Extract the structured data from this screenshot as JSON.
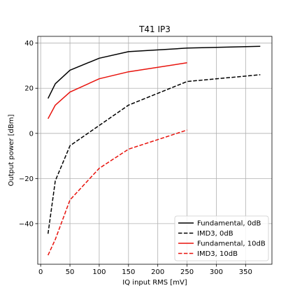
{
  "chart_data": {
    "type": "line",
    "title": "T41 IP3",
    "xlabel": "IQ input RMS [mV]",
    "ylabel": "Output power [dBm]",
    "xlim": [
      -5,
      395
    ],
    "ylim": [
      -58,
      43
    ],
    "xticks": [
      0,
      50,
      100,
      150,
      200,
      250,
      300,
      350
    ],
    "yticks": [
      -40,
      -20,
      0,
      20,
      40
    ],
    "ytick_labels": [
      "−40",
      "−20",
      "0",
      "20",
      "40"
    ],
    "grid": true,
    "legend_position": "lower-right",
    "series": [
      {
        "name": "Fundamental, 0dB",
        "color": "#000000",
        "dash": "solid",
        "x": [
          12.5,
          25,
          50,
          100,
          150,
          250,
          375
        ],
        "y": [
          15.5,
          22,
          28,
          33.3,
          36.2,
          37.8,
          38.6
        ]
      },
      {
        "name": "IMD3, 0dB",
        "color": "#000000",
        "dash": "dashed",
        "x": [
          12.5,
          25,
          50,
          100,
          150,
          250,
          375
        ],
        "y": [
          -44.5,
          -21,
          -5.5,
          3.5,
          12.5,
          23,
          26
        ]
      },
      {
        "name": "Fundamental, 10dB",
        "color": "#e8120c",
        "dash": "solid",
        "x": [
          12.5,
          25,
          50,
          100,
          150,
          250
        ],
        "y": [
          6.5,
          12.5,
          18.3,
          24.2,
          27.3,
          31.3
        ]
      },
      {
        "name": "IMD3, 10dB",
        "color": "#e8120c",
        "dash": "dashed",
        "x": [
          12.5,
          25,
          50,
          100,
          150,
          250
        ],
        "y": [
          -54,
          -47,
          -29.5,
          -15.5,
          -7,
          1.5
        ]
      }
    ]
  }
}
